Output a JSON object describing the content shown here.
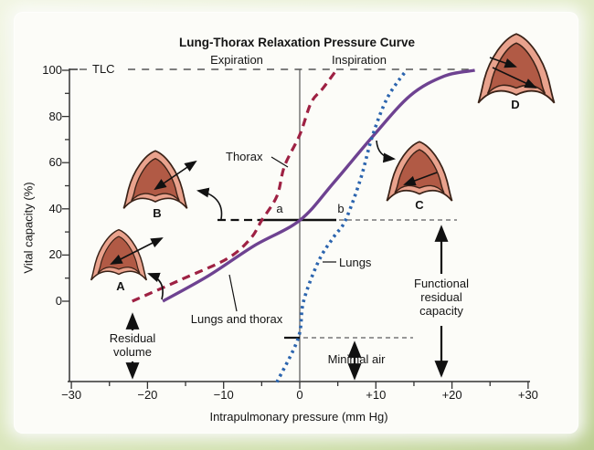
{
  "figure": {
    "title": "Lung-Thorax Relaxation Pressure Curve"
  },
  "chart_data": {
    "type": "line",
    "title": "Lung-Thorax Relaxation Pressure Curve",
    "xlabel": "Intrapulmonary pressure (mm Hg)",
    "ylabel": "Vital capacity (%)",
    "xlim": [
      -30,
      30
    ],
    "ylim": [
      -35,
      100
    ],
    "grid": false,
    "x_tick_values": [
      -30,
      -20,
      -10,
      0,
      10,
      20,
      30
    ],
    "x_ticks": [
      "−30",
      "−20",
      "−10",
      "0",
      "+10",
      "+20",
      "+30"
    ],
    "x_minor_tick_values": [
      -25,
      -15,
      -5,
      5,
      15,
      25
    ],
    "y_tick_values": [
      100,
      80,
      60,
      40,
      20,
      0
    ],
    "y_ticks": [
      "100",
      "80",
      "60",
      "40",
      "20",
      "0"
    ],
    "y_minor_tick_values": [
      90,
      70,
      50,
      30,
      10
    ],
    "phase_left": "Expiration",
    "phase_right": "Inspiration",
    "series": [
      {
        "name": "Thorax",
        "line_style": "dashed",
        "color": "#9e2143",
        "points_x": [
          -22,
          -15.5,
          -9.5,
          -6.5,
          -5,
          -3,
          -2,
          0,
          1.5,
          3,
          4.8
        ],
        "points_y": [
          0,
          9.5,
          18.5,
          27,
          35,
          45.5,
          58.5,
          72,
          86,
          92,
          100
        ]
      },
      {
        "name": "Lungs and thorax",
        "line_style": "solid",
        "color": "#6e4291",
        "points_x": [
          -18,
          -12,
          -6,
          0,
          4.5,
          9.5,
          14.5,
          19,
          23
        ],
        "points_y": [
          0,
          11,
          24,
          35,
          51.5,
          71,
          89,
          97.5,
          100
        ]
      },
      {
        "name": "Lungs",
        "line_style": "dotted",
        "color": "#2b64ae",
        "points_x": [
          -3,
          -0.2,
          0.5,
          2.5,
          4.5,
          6,
          8,
          9.5,
          11.5,
          14
        ],
        "points_y": [
          -35,
          -16,
          0,
          17.5,
          28,
          35,
          53,
          71,
          88,
          100
        ]
      }
    ],
    "curve_labels": {
      "thorax": "Thorax",
      "lungs": "Lungs",
      "lungs_and_thorax": "Lungs and thorax"
    },
    "annotations": {
      "tlc": "TLC",
      "point_a": "a",
      "point_b": "b",
      "residual_volume_line1": "Residual",
      "residual_volume_line2": "volume",
      "frc_line1": "Functional",
      "frc_line2": "residual",
      "frc_line3": "capacity",
      "minimal_air": "Minimal air",
      "lung_a": "A",
      "lung_b": "B",
      "lung_c": "C",
      "lung_d": "D"
    }
  },
  "icons": {
    "lung_a": "lung-section-icon",
    "lung_b": "lung-section-icon",
    "lung_c": "lung-section-icon",
    "lung_d": "lung-section-icon"
  },
  "colors": {
    "thorax_curve": "#9e2143",
    "lungs_curve": "#2b64ae",
    "lungs_thorax_curve": "#6e4291",
    "lung_outer_fill": "#e9a28d",
    "lung_inner_fill": "#b15a45",
    "lung_outline": "#3a2217",
    "axis": "#333333",
    "frame_green": "#d8e5b6",
    "page": "#fcfcf8"
  }
}
